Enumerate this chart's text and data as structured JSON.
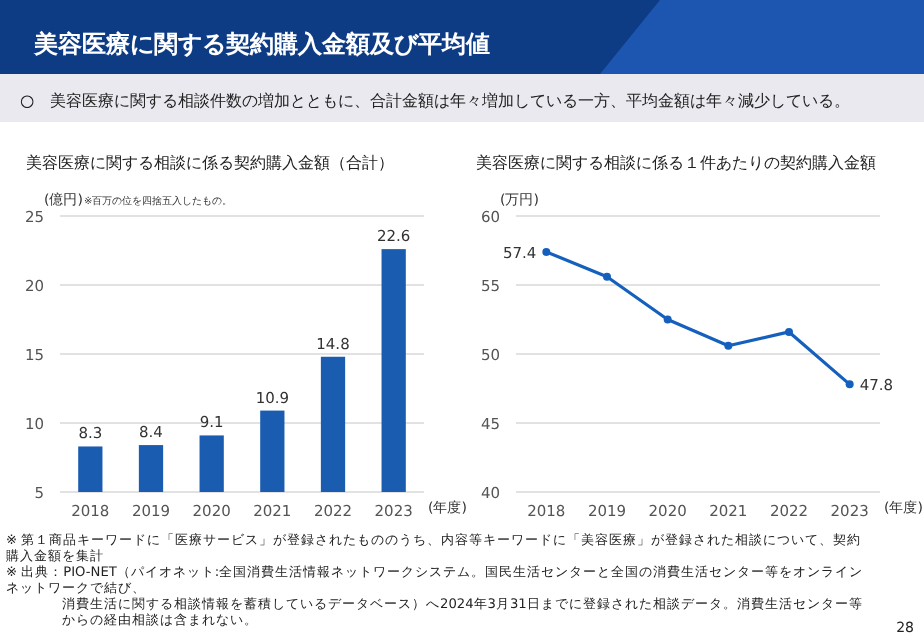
{
  "chart_data": [
    {
      "type": "bar",
      "title": "美容医療に関する相談に係る契約購入金額（合計）",
      "ylabel": "(億円)",
      "xlabel": "(年度)",
      "categories": [
        "2018",
        "2019",
        "2020",
        "2021",
        "2022",
        "2023"
      ],
      "values": [
        8.3,
        8.4,
        9.1,
        10.9,
        14.8,
        22.6
      ],
      "color": "#1a5cb0",
      "data_labels": true,
      "ylim": [
        5,
        25
      ],
      "yticks": [
        5,
        10,
        15,
        20,
        25
      ],
      "grid": "y",
      "annotations": [
        "美容医療に関する契約購入金額及び平均値",
        "○　美容医療に関する相談件数の増加とともに、合計金額は年々増加している一方、平均金額は年々減少している。",
        "※百万の位を四捨五入したもの。",
        "※ 第１商品キーワードに「医療サービス」が登録されたもののうち、内容等キーワードに「美容医療」が登録された相談について、契約購入金額を集計",
        "※ 出典：PIO-NET（パイオネット:全国消費生活情報ネットワークシステム。国民生活センターと全国の消費生活センター等をオンラインネットワークで結び、",
        "消費生活に関する相談情報を蓄積しているデータベース）へ2024年3月31日までに登録された相談データ。消費生活センター等からの経由相談は含まれない。",
        "28"
      ]
    },
    {
      "type": "line",
      "title": "美容医療に関する相談に係る１件あたりの契約購入金額",
      "ylabel": "(万円)",
      "xlabel": "(年度)",
      "categories": [
        "2018",
        "2019",
        "2020",
        "2021",
        "2022",
        "2023"
      ],
      "values": [
        57.4,
        55.6,
        52.5,
        50.6,
        51.6,
        47.8
      ],
      "value_labels": [
        "57.4",
        null,
        null,
        null,
        null,
        "47.8"
      ],
      "color": "#1560bd",
      "marker": "circle",
      "line_style": "solid",
      "ylim": [
        40,
        60
      ],
      "yticks": [
        40,
        45,
        50,
        55,
        60
      ],
      "grid": "y"
    }
  ]
}
